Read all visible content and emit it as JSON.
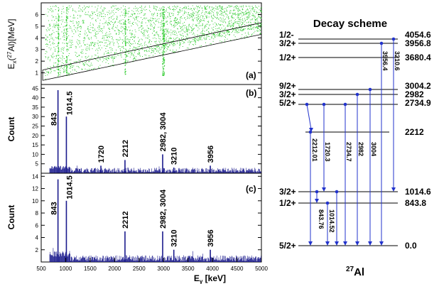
{
  "chart_data": [
    {
      "id": "a",
      "type": "scatter",
      "panel_label": "(a)",
      "ylabel": "Ex(27Al)[MeV]",
      "ylabel_parts": {
        "pre": "E",
        "sub": "x",
        "mid": "(",
        "sup": "27",
        "post": "Al)[MeV]"
      },
      "xlim": [
        500,
        5000
      ],
      "ylim": [
        0,
        7
      ],
      "yticks": [
        1,
        2,
        3,
        4,
        5,
        6
      ],
      "band_lines": [
        {
          "x": [
            530,
            5000
          ],
          "y": [
            0.35,
            4.3
          ]
        },
        {
          "x": [
            530,
            5000
          ],
          "y": [
            1.25,
            5.3
          ]
        }
      ],
      "dense_columns_x": [
        843,
        1014.5,
        2212,
        2982,
        3004
      ]
    },
    {
      "id": "b",
      "type": "bar",
      "panel_label": "(b)",
      "ylabel": "Count",
      "xlim": [
        500,
        5000
      ],
      "ylim": [
        0,
        47
      ],
      "yticks": [
        5,
        10,
        15,
        20,
        25,
        30,
        35,
        40,
        45
      ],
      "peaks": [
        {
          "x": 843,
          "y": 44,
          "label": "843"
        },
        {
          "x": 1014.5,
          "y": 30,
          "label": "1014.5"
        },
        {
          "x": 1720,
          "y": 4,
          "label": "1720"
        },
        {
          "x": 2212,
          "y": 7,
          "label": "2212"
        },
        {
          "x": 2982,
          "y": 10,
          "label": "2982, 3004"
        },
        {
          "x": 3210,
          "y": 3,
          "label": "3210"
        },
        {
          "x": 3956,
          "y": 4,
          "label": "3956"
        }
      ]
    },
    {
      "id": "c",
      "type": "bar",
      "panel_label": "(c)",
      "ylabel": "Count",
      "xlabel": "Eγ [keV]",
      "xlabel_parts": {
        "pre": "E",
        "sub": "γ",
        "post": " [keV]"
      },
      "xlim": [
        500,
        5000
      ],
      "ylim": [
        0,
        14.5
      ],
      "yticks": [
        2,
        4,
        6,
        8,
        10,
        12,
        14
      ],
      "xticks": [
        500,
        1000,
        1500,
        2000,
        2500,
        3000,
        3500,
        4000,
        4500,
        5000
      ],
      "peaks": [
        {
          "x": 843,
          "y": 13.5,
          "label": "843"
        },
        {
          "x": 1014.5,
          "y": 10,
          "label": "1014.5"
        },
        {
          "x": 2212,
          "y": 5,
          "label": "2212"
        },
        {
          "x": 2982,
          "y": 5,
          "label": "2982, 3004"
        },
        {
          "x": 3210,
          "y": 2,
          "label": "3210"
        },
        {
          "x": 3956,
          "y": 2,
          "label": "3956"
        }
      ]
    }
  ],
  "decay_scheme": {
    "title": "Decay scheme",
    "nucleus": {
      "pre": "",
      "sup": "27",
      "post": "Al"
    },
    "levels": [
      {
        "spin": "1/2-",
        "energy": "4054.6"
      },
      {
        "spin": "3/2+",
        "energy": "3956.8"
      },
      {
        "spin": "1/2+",
        "energy": "3680.4"
      },
      {
        "spin": "9/2+",
        "energy": "3004.2"
      },
      {
        "spin": "3/2+",
        "energy": "2982"
      },
      {
        "spin": "5/2+",
        "energy": "2734.9"
      },
      {
        "spin": "",
        "energy": "2212"
      },
      {
        "spin": "3/2+",
        "energy": "1014.6"
      },
      {
        "spin": "1/2+",
        "energy": "843.8"
      },
      {
        "spin": "5/2+",
        "energy": "0.0"
      }
    ],
    "transitions": [
      {
        "label": "2212.01"
      },
      {
        "label": "1720.3"
      },
      {
        "label": "2734.7"
      },
      {
        "label": "2982"
      },
      {
        "label": "3004"
      },
      {
        "label": "3956.4"
      },
      {
        "label": "3210.6"
      },
      {
        "label": "843.76"
      },
      {
        "label": "1014.52"
      }
    ]
  },
  "colors": {
    "spectrum": "#1a1a8c",
    "scatter": "#33cc33",
    "arrow": "#2233cc",
    "axis": "#000000"
  }
}
